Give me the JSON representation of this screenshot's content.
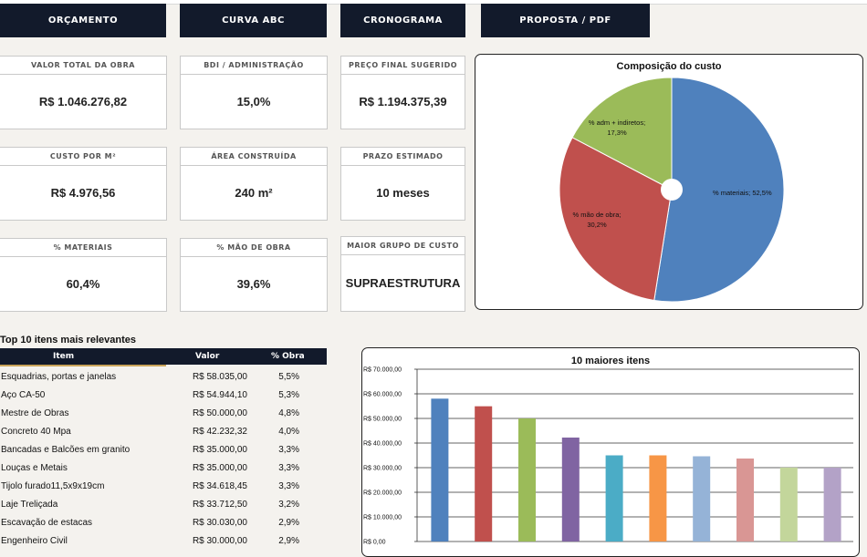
{
  "nav": [
    {
      "label": "ORÇAMENTO"
    },
    {
      "label": "CURVA ABC"
    },
    {
      "label": "CRONOGRAMA"
    },
    {
      "label": "PROPOSTA / PDF"
    }
  ],
  "kpis": [
    {
      "label": "VALOR TOTAL DA OBRA",
      "value": "R$ 1.046.276,82"
    },
    {
      "label": "BDI / ADMINISTRAÇÃO",
      "value": "15,0%"
    },
    {
      "label": "PREÇO FINAL SUGERIDO",
      "value": "R$ 1.194.375,39"
    },
    {
      "label": "CUSTO POR M²",
      "value": "R$ 4.976,56"
    },
    {
      "label": "ÁREA CONSTRUÍDA",
      "value": "240 m²"
    },
    {
      "label": "PRAZO ESTIMADO",
      "value": "10 meses"
    },
    {
      "label": "% MATERIAIS",
      "value": "60,4%"
    },
    {
      "label": "% MÃO DE OBRA",
      "value": "39,6%"
    },
    {
      "label": "MAIOR GRUPO DE CUSTO",
      "value": "SUPRAESTRUTURA"
    }
  ],
  "table": {
    "title": "Top 10 itens mais relevantes",
    "headers": [
      "Item",
      "Valor",
      "% Obra"
    ],
    "rows": [
      [
        "Esquadrias, portas e janelas",
        "R$ 58.035,00",
        "5,5%"
      ],
      [
        "Aço CA-50",
        "R$ 54.944,10",
        "5,3%"
      ],
      [
        "Mestre de Obras",
        "R$ 50.000,00",
        "4,8%"
      ],
      [
        "Concreto 40 Mpa",
        "R$ 42.232,32",
        "4,0%"
      ],
      [
        "Bancadas e Balcões em granito",
        "R$ 35.000,00",
        "3,3%"
      ],
      [
        "Louças e Metais",
        "R$ 35.000,00",
        "3,3%"
      ],
      [
        "Tijolo furado11,5x9x19cm",
        "R$ 34.618,45",
        "3,3%"
      ],
      [
        "Laje Treliçada",
        "R$ 33.712,50",
        "3,2%"
      ],
      [
        "Escavação de estacas",
        "R$ 30.030,00",
        "2,9%"
      ],
      [
        "Engenheiro Civil",
        "R$ 30.000,00",
        "2,9%"
      ]
    ]
  },
  "chart_data": [
    {
      "type": "pie",
      "title": "Composição do custo",
      "slices": [
        {
          "label": "% materiais; 52,5%",
          "value": 52.5,
          "color": "#4f81bd"
        },
        {
          "label": "% mão de obra; 30,2%",
          "value": 30.2,
          "color": "#c0504d"
        },
        {
          "label": "% adm + indiretos; 17,3%",
          "value": 17.3,
          "color": "#9bbb59"
        }
      ]
    },
    {
      "type": "bar",
      "title": "10 maiores itens",
      "ylim": [
        0,
        70000
      ],
      "yticks": [
        "R$ 0,00",
        "R$ 10.000,00",
        "R$ 20.000,00",
        "R$ 30.000,00",
        "R$ 40.000,00",
        "R$ 50.000,00",
        "R$ 60.000,00",
        "R$ 70.000,00"
      ],
      "values": [
        58035,
        54944.1,
        50000,
        42232.32,
        35000,
        35000,
        34618.45,
        33712.5,
        30030,
        30000
      ],
      "colors": [
        "#4f81bd",
        "#c0504d",
        "#9bbb59",
        "#8064a2",
        "#4bacc6",
        "#f79646",
        "#95b3d7",
        "#d99694",
        "#c3d69b",
        "#b3a2c7"
      ],
      "grid": true
    }
  ]
}
